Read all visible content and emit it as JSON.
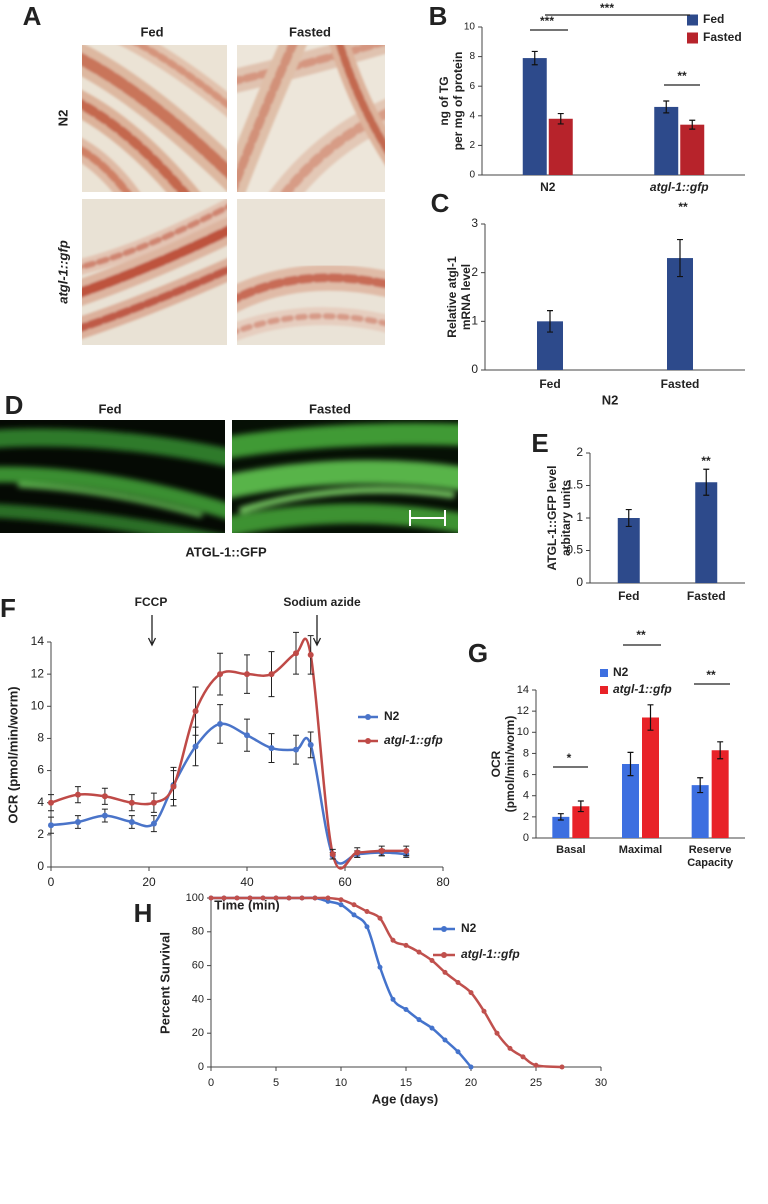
{
  "image_panels": [
    {
      "panel": "A",
      "columns": [
        "Fed",
        "Fasted"
      ],
      "rows": [
        "N2",
        "atgl-1::gfp"
      ]
    },
    {
      "panel": "D",
      "columns": [
        "Fed",
        "Fasted"
      ],
      "caption": "ATGL-1::GFP"
    }
  ],
  "chart_data": [
    {
      "panel": "B",
      "type": "bar",
      "ylabel": [
        "ng of TG",
        "per mg of protein"
      ],
      "categories": [
        "N2",
        "atgl-1::gfp"
      ],
      "series": [
        {
          "name": "Fed",
          "color": "#2d4a8b",
          "values": [
            7.9,
            4.6
          ],
          "errors": [
            0.45,
            0.4
          ]
        },
        {
          "name": "Fasted",
          "color": "#b7232b",
          "values": [
            3.8,
            3.4
          ],
          "errors": [
            0.35,
            0.3
          ]
        }
      ],
      "ylim": [
        0,
        10
      ],
      "yticks": [
        0,
        2,
        4,
        6,
        8,
        10
      ],
      "legend": "top-right",
      "annotations": [
        "***",
        "***",
        "**"
      ]
    },
    {
      "panel": "C",
      "type": "bar",
      "ylabel": [
        "Relative atgl-1",
        "mRNA level"
      ],
      "xlabel": "N2",
      "categories": [
        "Fed",
        "Fasted"
      ],
      "values": [
        1.0,
        2.3
      ],
      "errors": [
        0.22,
        0.38
      ],
      "color": "#2d4a8b",
      "ylim": [
        0,
        3
      ],
      "yticks": [
        0,
        1,
        2,
        3
      ],
      "annotations": [
        "**"
      ]
    },
    {
      "panel": "E",
      "type": "bar",
      "ylabel": [
        "ATGL-1::GFP level",
        "arbitary units"
      ],
      "categories": [
        "Fed",
        "Fasted"
      ],
      "values": [
        1.0,
        1.55
      ],
      "errors": [
        0.13,
        0.2
      ],
      "color": "#2d4a8b",
      "ylim": [
        0,
        2
      ],
      "yticks": [
        0,
        0.5,
        1,
        1.5,
        2
      ],
      "annotations": [
        "**"
      ]
    },
    {
      "panel": "F",
      "type": "line",
      "ylabel": "OCR (pmol/min/worm)",
      "xlabel": "Time (min)",
      "x": [
        0,
        5.5,
        11,
        16.5,
        21,
        25,
        29.5,
        34.5,
        40,
        45,
        50,
        53,
        57.5,
        62.5,
        67.5,
        72.5
      ],
      "series": [
        {
          "name": "N2",
          "color": "#4a74c9",
          "values": [
            2.6,
            2.8,
            3.2,
            2.8,
            2.7,
            5.1,
            7.5,
            8.9,
            8.2,
            7.4,
            7.3,
            7.6,
            0.7,
            0.8,
            0.9,
            0.8
          ],
          "errors": [
            0.5,
            0.4,
            0.4,
            0.4,
            0.5,
            0.9,
            1.2,
            1.2,
            1.0,
            0.9,
            0.9,
            0.8,
            0.2,
            0.2,
            0.2,
            0.2
          ]
        },
        {
          "name": "atgl-1::gfp",
          "color": "#bf4a47",
          "values": [
            4.0,
            4.5,
            4.4,
            4.0,
            4.0,
            5.0,
            9.7,
            12.0,
            12.0,
            12.0,
            13.3,
            13.2,
            0.8,
            0.9,
            1.0,
            1.0
          ],
          "errors": [
            0.5,
            0.5,
            0.5,
            0.5,
            0.6,
            1.2,
            1.5,
            1.3,
            1.2,
            1.4,
            1.3,
            1.2,
            0.3,
            0.3,
            0.3,
            0.3
          ]
        }
      ],
      "xlim": [
        0,
        80
      ],
      "xticks": [
        0,
        20,
        40,
        60,
        80
      ],
      "ylim": [
        0,
        14
      ],
      "yticks": [
        0,
        2,
        4,
        6,
        8,
        10,
        12,
        14
      ],
      "legend": "right",
      "annotations": [
        "FCCP",
        "Sodium azide"
      ]
    },
    {
      "panel": "G",
      "type": "bar",
      "ylabel": [
        "OCR",
        "(pmol/min/worm)"
      ],
      "categories": [
        "Basal",
        "Maximal",
        "Reserve Capacity"
      ],
      "series": [
        {
          "name": "N2",
          "color": "#3d6fe0",
          "values": [
            2.0,
            7.0,
            5.0
          ],
          "errors": [
            0.3,
            1.1,
            0.7
          ]
        },
        {
          "name": "atgl-1::gfp",
          "color": "#e82228",
          "values": [
            3.0,
            11.4,
            8.3
          ],
          "errors": [
            0.5,
            1.2,
            0.8
          ]
        }
      ],
      "ylim": [
        0,
        14
      ],
      "yticks": [
        0,
        2,
        4,
        6,
        8,
        10,
        12,
        14
      ],
      "legend": "top-right",
      "annotations": [
        "*",
        "**",
        "**"
      ]
    },
    {
      "panel": "H",
      "type": "line",
      "ylabel": "Percent Survival",
      "xlabel": "Age (days)",
      "series": [
        {
          "name": "N2",
          "color": "#4473cc",
          "x": [
            0,
            1,
            2,
            3,
            4,
            5,
            6,
            7,
            8,
            9,
            10,
            11,
            12,
            13,
            14,
            15,
            16,
            17,
            18,
            19,
            20
          ],
          "values": [
            100,
            100,
            100,
            100,
            100,
            100,
            100,
            100,
            100,
            98,
            96,
            90,
            83,
            59,
            40,
            34,
            28,
            23,
            16,
            9,
            0
          ]
        },
        {
          "name": "atgl-1::gfp",
          "color": "#c0504d",
          "x": [
            0,
            1,
            2,
            3,
            4,
            5,
            6,
            7,
            8,
            9,
            10,
            11,
            12,
            13,
            14,
            15,
            16,
            17,
            18,
            19,
            20,
            21,
            22,
            23,
            24,
            25,
            27
          ],
          "values": [
            100,
            100,
            100,
            100,
            100,
            100,
            100,
            100,
            100,
            100,
            99,
            96,
            92,
            88,
            75,
            72,
            68,
            63,
            56,
            50,
            44,
            33,
            20,
            11,
            6,
            1,
            0
          ]
        }
      ],
      "xlim": [
        0,
        30
      ],
      "xticks": [
        0,
        5,
        10,
        15,
        20,
        25,
        30
      ],
      "ylim": [
        0,
        100
      ],
      "yticks": [
        0,
        20,
        40,
        60,
        80,
        100
      ],
      "legend": "top-right"
    }
  ]
}
